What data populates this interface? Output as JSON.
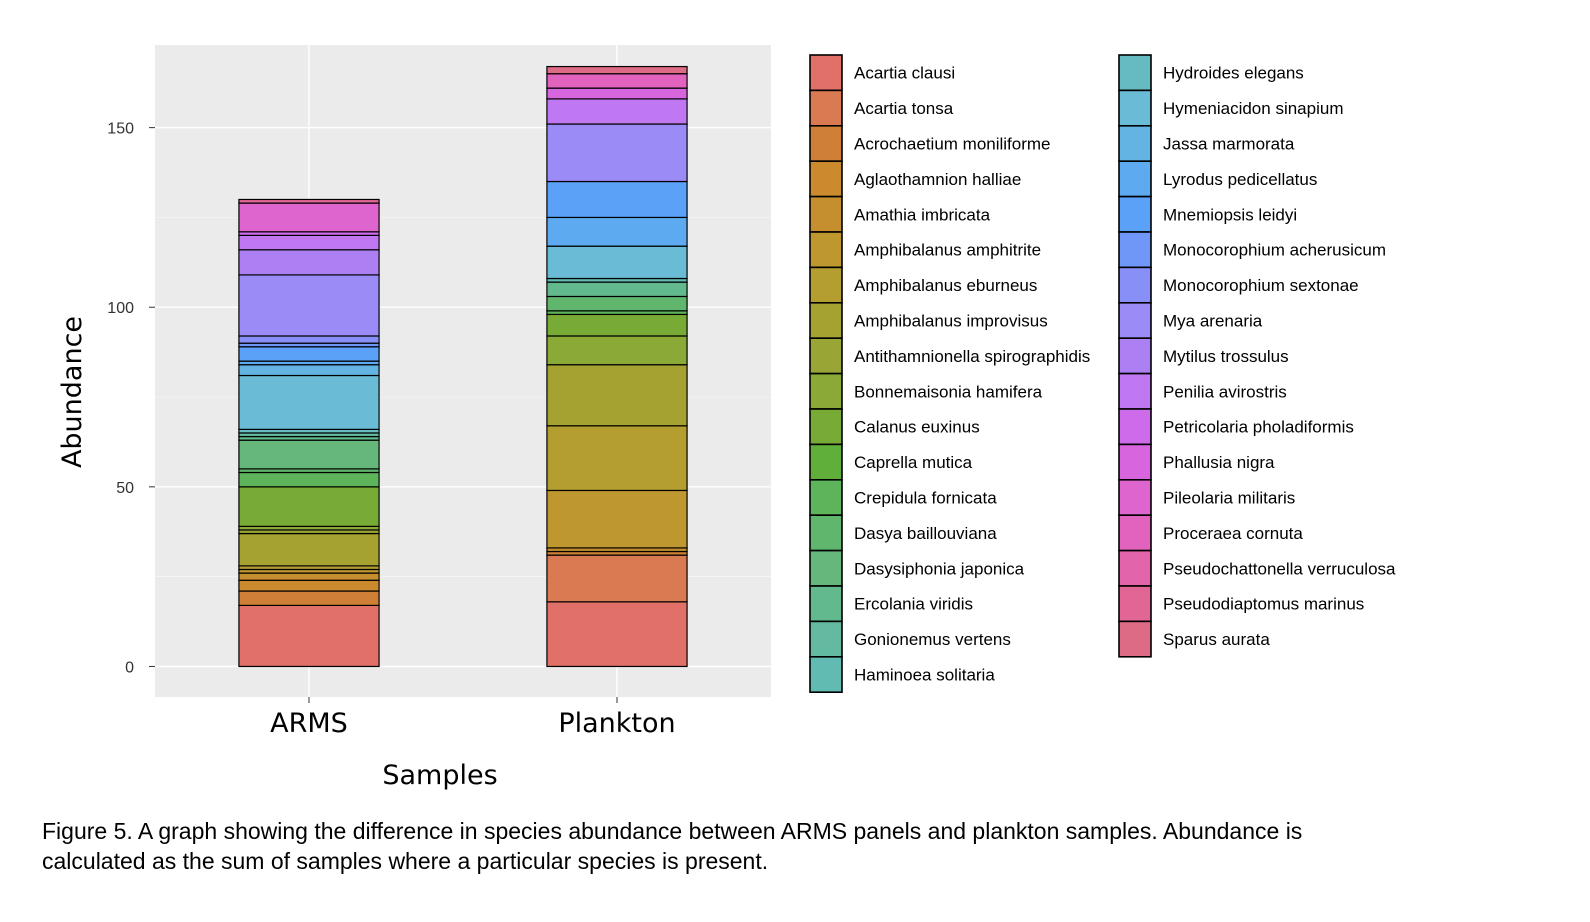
{
  "chart_data": {
    "type": "bar",
    "stacked": true,
    "xlabel": "Samples",
    "ylabel": "Abundance",
    "ylim": [
      -8.5,
      173
    ],
    "yticks": [
      0,
      50,
      100,
      150
    ],
    "grid": true,
    "legend_position": "right",
    "categories": [
      "ARMS",
      "Plankton"
    ],
    "series": [
      {
        "name": "Acartia clausi",
        "color": "#e07068",
        "values": [
          17,
          18
        ]
      },
      {
        "name": "Acartia tonsa",
        "color": "#d97a52",
        "values": [
          0,
          13
        ]
      },
      {
        "name": "Acrochaetium moniliforme",
        "color": "#cf8036",
        "values": [
          4,
          1
        ]
      },
      {
        "name": "Aglaothamnion halliae",
        "color": "#cc8a2f",
        "values": [
          3,
          0
        ]
      },
      {
        "name": "Amathia imbricata",
        "color": "#c58f2f",
        "values": [
          2,
          1
        ]
      },
      {
        "name": "Amphibalanus amphitrite",
        "color": "#be972f",
        "values": [
          1,
          16
        ]
      },
      {
        "name": "Amphibalanus eburneus",
        "color": "#b39e2f",
        "values": [
          1,
          18
        ]
      },
      {
        "name": "Amphibalanus improvisus",
        "color": "#a6a232",
        "values": [
          9,
          17
        ]
      },
      {
        "name": "Antithamnionella spirographidis",
        "color": "#99a535",
        "values": [
          1,
          0
        ]
      },
      {
        "name": "Bonnemaisonia hamifera",
        "color": "#8aa936",
        "values": [
          1,
          8
        ]
      },
      {
        "name": "Calanus euxinus",
        "color": "#77ab35",
        "values": [
          11,
          6
        ]
      },
      {
        "name": "Caprella mutica",
        "color": "#5faf3a",
        "values": [
          0,
          0
        ]
      },
      {
        "name": "Crepidula fornicata",
        "color": "#5db45a",
        "values": [
          4,
          1
        ]
      },
      {
        "name": "Dasya baillouviana",
        "color": "#5fb66c",
        "values": [
          1,
          4
        ]
      },
      {
        "name": "Dasysiphonia japonica",
        "color": "#66b77b",
        "values": [
          8,
          0
        ]
      },
      {
        "name": "Ercolania viridis",
        "color": "#62b98d",
        "values": [
          1,
          4
        ]
      },
      {
        "name": "Gonionemus vertens",
        "color": "#63baa0",
        "values": [
          1,
          0
        ]
      },
      {
        "name": "Haminoea solitaria",
        "color": "#62bbb2",
        "values": [
          0,
          1
        ]
      },
      {
        "name": "Hydroides elegans",
        "color": "#66bbc2",
        "values": [
          1,
          0
        ]
      },
      {
        "name": "Hymeniacidon sinapium",
        "color": "#6abbd6",
        "values": [
          15,
          9
        ]
      },
      {
        "name": "Jassa marmorata",
        "color": "#64b4e3",
        "values": [
          3,
          0
        ]
      },
      {
        "name": "Lyrodus pedicellatus",
        "color": "#5eaaf0",
        "values": [
          1,
          8
        ]
      },
      {
        "name": "Mnemiopsis leidyi",
        "color": "#5aa1f7",
        "values": [
          4,
          10
        ]
      },
      {
        "name": "Monocorophium acherusicum",
        "color": "#6e97f7",
        "values": [
          1,
          0
        ]
      },
      {
        "name": "Monocorophium sextonae",
        "color": "#888ff6",
        "values": [
          2,
          0
        ]
      },
      {
        "name": "Mya arenaria",
        "color": "#9b8bf6",
        "values": [
          17,
          16
        ]
      },
      {
        "name": "Mytilus trossulus",
        "color": "#ac80f2",
        "values": [
          7,
          0
        ]
      },
      {
        "name": "Penilia avirostris",
        "color": "#bf78f2",
        "values": [
          4,
          7
        ]
      },
      {
        "name": "Petricolaria pholadiformis",
        "color": "#cd6bea",
        "values": [
          1,
          0
        ]
      },
      {
        "name": "Phallusia nigra",
        "color": "#d765de",
        "values": [
          0,
          3
        ]
      },
      {
        "name": "Pileolaria militaris",
        "color": "#de64ce",
        "values": [
          8,
          0
        ]
      },
      {
        "name": "Proceraea cornuta",
        "color": "#e163bd",
        "values": [
          0,
          4
        ]
      },
      {
        "name": "Pseudochattonella verruculosa",
        "color": "#e264aa",
        "values": [
          0,
          0
        ]
      },
      {
        "name": "Pseudodiaptomus marinus",
        "color": "#e16696",
        "values": [
          1,
          0
        ]
      },
      {
        "name": "Sparus aurata",
        "color": "#de6b86",
        "values": [
          0,
          2
        ]
      }
    ]
  },
  "caption": {
    "line1": "Figure 5. A graph showing the difference in species abundance between ARMS panels and plankton samples. Abundance is",
    "line2": "calculated as the sum of samples where a particular species is present."
  }
}
